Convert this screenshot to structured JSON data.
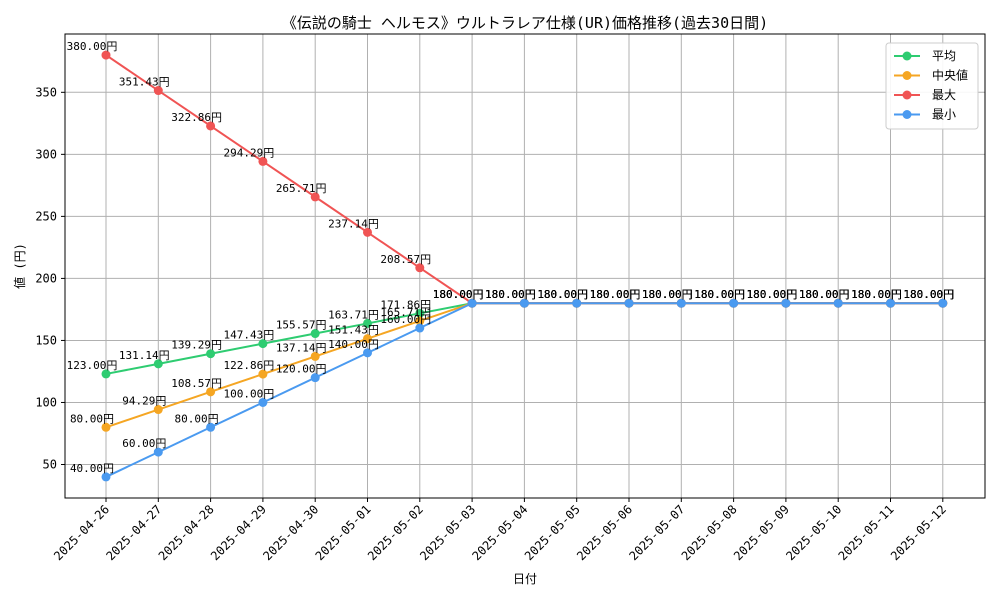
{
  "chart_data": {
    "type": "line",
    "title": "《伝説の騎士 ヘルモス》ウルトラレア仕様(UR)価格推移(過去30日間)",
    "xlabel": "日付",
    "ylabel": "値 (円)",
    "ylim": [
      23.0,
      397.0
    ],
    "y_ticks": [
      50,
      100,
      150,
      200,
      250,
      300,
      350
    ],
    "grid": true,
    "legend_position": "top-right",
    "categories": [
      "2025-04-26",
      "2025-04-27",
      "2025-04-28",
      "2025-04-29",
      "2025-04-30",
      "2025-05-01",
      "2025-05-02",
      "2025-05-03",
      "2025-05-04",
      "2025-05-05",
      "2025-05-06",
      "2025-05-07",
      "2025-05-08",
      "2025-05-09",
      "2025-05-10",
      "2025-05-11",
      "2025-05-12"
    ],
    "series": [
      {
        "name": "平均",
        "color": "#2ecc71",
        "values": [
          123.0,
          131.14,
          139.29,
          147.43,
          155.57,
          163.71,
          171.86,
          180.0,
          180.0,
          180.0,
          180.0,
          180.0,
          180.0,
          180.0,
          180.0,
          180.0,
          180.0
        ]
      },
      {
        "name": "中央値",
        "color": "#f5a623",
        "values": [
          80.0,
          94.29,
          108.57,
          122.86,
          137.14,
          151.43,
          165.71,
          180.0,
          180.0,
          180.0,
          180.0,
          180.0,
          180.0,
          180.0,
          180.0,
          180.0,
          180.0
        ]
      },
      {
        "name": "最大",
        "color": "#f05454",
        "values": [
          380.0,
          351.43,
          322.86,
          294.29,
          265.71,
          237.14,
          208.57,
          180.0,
          180.0,
          180.0,
          180.0,
          180.0,
          180.0,
          180.0,
          180.0,
          180.0,
          180.0
        ]
      },
      {
        "name": "最小",
        "color": "#4a9af0",
        "values": [
          40.0,
          60.0,
          80.0,
          100.0,
          120.0,
          140.0,
          160.0,
          180.0,
          180.0,
          180.0,
          180.0,
          180.0,
          180.0,
          180.0,
          180.0,
          180.0,
          180.0
        ]
      }
    ],
    "data_label_suffix": "円"
  }
}
